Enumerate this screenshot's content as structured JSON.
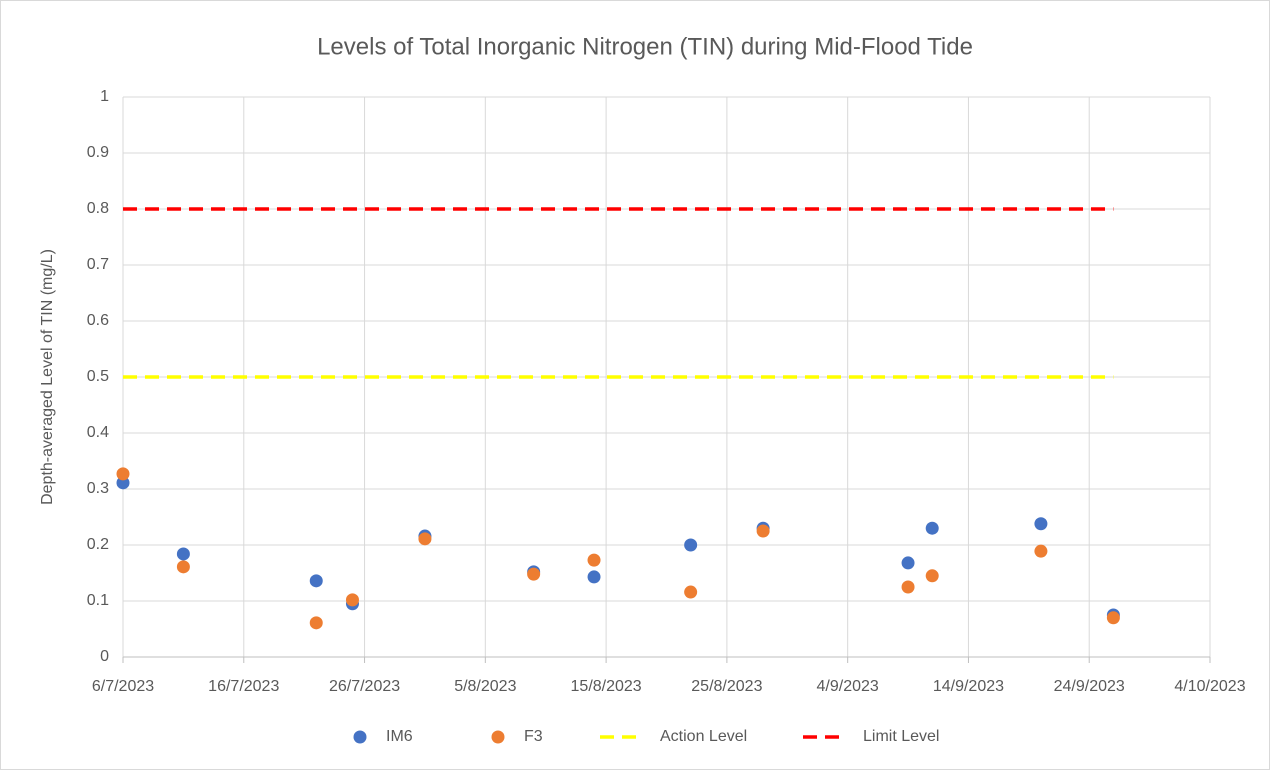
{
  "chart_data": {
    "type": "scatter",
    "title": "Levels of Total Inorganic Nitrogen (TIN) during Mid-Flood Tide",
    "y_label": "Depth-averaged Level of  TIN (mg/L)",
    "xlim": [
      "6/7/2023",
      "4/10/2023"
    ],
    "xticks": [
      "6/7/2023",
      "16/7/2023",
      "26/7/2023",
      "5/8/2023",
      "15/8/2023",
      "25/8/2023",
      "4/9/2023",
      "14/9/2023",
      "24/9/2023",
      "4/10/2023"
    ],
    "ylim": [
      0,
      1
    ],
    "yticks": [
      0,
      0.1,
      0.2,
      0.3,
      0.4,
      0.5,
      0.6,
      0.7,
      0.8,
      0.9,
      1
    ],
    "grid": true,
    "legend": "bottom",
    "series": [
      {
        "name": "IM6",
        "color": "#4472c4",
        "x": [
          "6/7/2023",
          "11/7/2023",
          "22/7/2023",
          "25/7/2023",
          "31/7/2023",
          "9/8/2023",
          "14/8/2023",
          "22/8/2023",
          "28/8/2023",
          "9/9/2023",
          "11/9/2023",
          "20/9/2023",
          "26/9/2023"
        ],
        "values": [
          0.311,
          0.184,
          0.136,
          0.095,
          0.216,
          0.152,
          0.143,
          0.2,
          0.23,
          0.168,
          0.23,
          0.238,
          0.075
        ]
      },
      {
        "name": "F3",
        "color": "#ed7d31",
        "x": [
          "6/7/2023",
          "11/7/2023",
          "22/7/2023",
          "25/7/2023",
          "31/7/2023",
          "9/8/2023",
          "14/8/2023",
          "22/8/2023",
          "28/8/2023",
          "9/9/2023",
          "11/9/2023",
          "20/9/2023",
          "26/9/2023"
        ],
        "values": [
          0.327,
          0.161,
          0.061,
          0.102,
          0.211,
          0.148,
          0.173,
          0.116,
          0.225,
          0.125,
          0.145,
          0.189,
          0.07
        ]
      },
      {
        "name": "Action Level",
        "color": "#ffff00",
        "line_style": "dashed",
        "x": [
          "6/7/2023",
          "26/9/2023"
        ],
        "values": [
          0.5,
          0.5
        ]
      },
      {
        "name": "Limit Level",
        "color": "#ff0000",
        "line_style": "dashed",
        "x": [
          "6/7/2023",
          "26/9/2023"
        ],
        "values": [
          0.8,
          0.8
        ]
      }
    ]
  }
}
